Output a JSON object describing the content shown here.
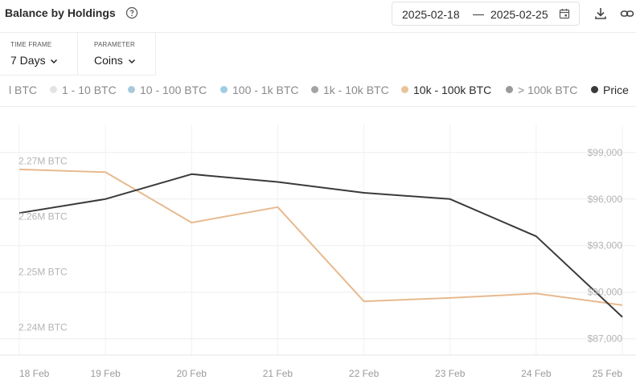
{
  "header": {
    "title": "Balance by Holdings",
    "date_start": "2025-02-18",
    "date_sep": "—",
    "date_end": "2025-02-25"
  },
  "filters": {
    "timeframe_label": "TIME FRAME",
    "timeframe_value": "7 Days",
    "parameter_label": "PARAMETER",
    "parameter_value": "Coins"
  },
  "legend": [
    {
      "label": "l BTC",
      "color": "#e0e0e0",
      "active": false,
      "show_dot": false
    },
    {
      "label": "1 - 10 BTC",
      "color": "#e3e3e3",
      "active": false,
      "show_dot": true
    },
    {
      "label": "10 - 100 BTC",
      "color": "#a9c9db",
      "active": false,
      "show_dot": true
    },
    {
      "label": "100 - 1k BTC",
      "color": "#9fcde3",
      "active": false,
      "show_dot": true
    },
    {
      "label": "1k - 10k BTC",
      "color": "#a3a3a3",
      "active": false,
      "show_dot": true
    },
    {
      "label": "10k - 100k BTC",
      "color": "#e8c49c",
      "active": true,
      "show_dot": true
    },
    {
      "label": "> 100k BTC",
      "color": "#9a9a9a",
      "active": false,
      "show_dot": true
    },
    {
      "label": "Price",
      "color": "#3a3a3a",
      "active": true,
      "show_dot": true
    }
  ],
  "chart_data": {
    "type": "line",
    "x": [
      "18 Feb",
      "19 Feb",
      "20 Feb",
      "21 Feb",
      "22 Feb",
      "23 Feb",
      "24 Feb",
      "25 Feb"
    ],
    "y_left": {
      "ticks": [
        "2.27M BTC",
        "2.26M BTC",
        "2.25M BTC",
        "2.24M BTC"
      ],
      "tick_values": [
        2.27,
        2.26,
        2.25,
        2.24
      ],
      "range": [
        2.236,
        2.2776
      ]
    },
    "y_right": {
      "ticks": [
        "$99,000",
        "$96,000",
        "$93,000",
        "$90,000",
        "$87,000"
      ],
      "tick_values": [
        99000,
        96000,
        93000,
        90000,
        87000
      ],
      "range": [
        85950,
        100800
      ]
    },
    "grid": true,
    "series": [
      {
        "name": "10k - 100k BTC",
        "axis": "left",
        "color": "#e8b98f",
        "values": [
          2.2695,
          2.269,
          2.2599,
          2.2627,
          2.2457,
          2.2463,
          2.2471,
          2.245
        ]
      },
      {
        "name": "Price",
        "axis": "right",
        "color": "#3a3a3a",
        "values": [
          95100,
          96000,
          97600,
          97100,
          96400,
          96000,
          93600,
          88400
        ]
      }
    ]
  }
}
